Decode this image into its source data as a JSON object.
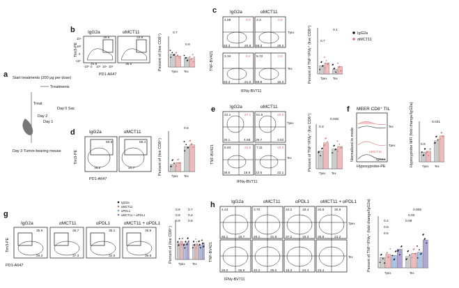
{
  "panels": {
    "a": {
      "label": "a",
      "start": "Start treatments (200 μg per dose)",
      "treatments": "Treatments",
      "treat": "Treat",
      "day2": "Day 2",
      "day1": "Day 1",
      "day0": "Day 0 Sac",
      "day3": "Day 3 Tumor-bearing mouse"
    },
    "b": {
      "label": "b",
      "conditions": [
        "IgG2a",
        "αMCT11"
      ],
      "upper_values": [
        "39.6",
        "33.9"
      ],
      "lower_values": [
        "45.9",
        "36.6"
      ],
      "y_axis": "Tim3-PE",
      "x_axis": "PD1-A647",
      "bar_ylabel": "Percent of (live CD8⁺)",
      "pvalues": [
        "0.7",
        "0.9"
      ],
      "groups": [
        "Tpex",
        "Tex"
      ]
    },
    "c": {
      "label": "c",
      "conditions": [
        "IgG2a",
        "αMCT11"
      ],
      "quadrants": [
        [
          "4.88",
          "0.0",
          "3.3",
          "0.0",
          "63.3",
          "20.8",
          "59.3",
          "29.2"
        ],
        [
          "3.34",
          "9.4",
          "5.72",
          "0.0",
          "63.3",
          "21.0",
          "69.8",
          "16.3"
        ]
      ],
      "row_labels": [
        "Tpex",
        "Tex"
      ],
      "y_axis": "TNF-BV421",
      "x_axis": "IFNγ-BV711",
      "bar_ylabel": "Percent of TNF⁺IFNγ⁺ (live CD8⁺)",
      "pvalues": [
        "0.7",
        "0.1"
      ],
      "groups": [
        "Tpex",
        "Tex"
      ],
      "legend": [
        "IgG2a",
        "αMCT11"
      ]
    },
    "d": {
      "label": "d",
      "conditions": [
        "IgG2a",
        "αMCT11"
      ],
      "upper_values": [
        "59.9",
        "58.4"
      ],
      "lower_values": [
        "19.2",
        "20.7"
      ],
      "y_axis": "Tim3-PE",
      "x_axis": "PD1-A647",
      "bar_ylabel": "Percent of (live CD8⁺)",
      "pvalues": [
        "0.5"
      ],
      "groups": [
        "Tpex",
        "Tex"
      ]
    },
    "e": {
      "label": "e",
      "conditions": [
        "IgG2a",
        "αMCT11"
      ],
      "quadrants": [
        [
          "42.1",
          "27.1",
          "51.6",
          "26.5",
          "26.1",
          "4.68",
          "26.7",
          "3.52"
        ],
        [
          "6.93",
          "20.5",
          "7.11",
          "18.0",
          "36.6",
          "18.8",
          "22.5",
          "22.1"
        ]
      ],
      "row_labels": [
        "Tpex",
        "Tex"
      ],
      "y_axis": "TNF-BV421",
      "x_axis": "IFNγ-BV711",
      "bar_ylabel": "Percent of TNF⁺IFNγ⁺ (live CD8⁺)",
      "pvalues": [
        "0.046",
        "0.3"
      ],
      "groups": [
        "Tpex",
        "Tex"
      ]
    },
    "f": {
      "label": "f",
      "title": "MEER CD8⁺ TIL",
      "hist_labels": [
        "αMCT11",
        "IgG2a"
      ],
      "row_labels": [
        "Tpex",
        "Tex"
      ],
      "y_axis": "Normalized to mode",
      "x_axis": "Hypoxyprobe-PE",
      "bar_ylabel": "Hypoxyprobe MFI (fold change/IgG2a)",
      "pvalues": [
        "0.9",
        "0.031"
      ],
      "groups": [
        "Tpex",
        "Tex"
      ]
    },
    "g": {
      "label": "g",
      "conditions": [
        "IgG2a",
        "αMCT11",
        "αPDL1",
        "αMCT11 + αPDL1"
      ],
      "upper_values": [
        "35.9",
        "36.7",
        "35.1",
        "35.9"
      ],
      "lower_values": [
        "29.2",
        "37.3",
        "32.5",
        "36.8"
      ],
      "legend": [
        "IgG2a",
        "αMCT11",
        "αPDL1",
        "αMCT11 + αPDL1"
      ],
      "y_axis": "Tim3-PE",
      "x_axis": "PD1-A647",
      "bar_ylabel": "Percent of (live CD8⁺)",
      "pvalues": [
        "0.9",
        "0.7",
        "0.9",
        "0.2",
        "0.9",
        "0.8"
      ],
      "groups": [
        "Tpex",
        "Tex"
      ]
    },
    "h": {
      "label": "h",
      "conditions": [
        "IgG2a",
        "αMCT11",
        "αPDL1",
        "αMCT11 + αPDL1"
      ],
      "quadrants_top": [
        [
          "4.43",
          "",
          "65.1",
          "16.7"
        ],
        [
          "3.70",
          "",
          "48.1",
          "31.9"
        ],
        [
          "34.2",
          "18.4",
          "37.2",
          "19.3"
        ],
        [
          "20.6",
          "30.9",
          "35.8",
          "23.2"
        ]
      ],
      "quadrants_bottom": [
        [
          "",
          "",
          "26.0",
          "26.9"
        ],
        [
          "",
          "",
          "40.2",
          "25.0"
        ],
        [
          "",
          "",
          "15.3",
          "24.4"
        ],
        [
          "",
          "",
          "23.4",
          ""
        ]
      ],
      "row_labels": [
        "Tpex",
        "Tex"
      ],
      "y_axis": "TNF-BV421",
      "x_axis": "IFNγ-BV711",
      "bar_ylabel": "Percent of TNF⁺IFNγ⁺ (fold change/IgG2a)",
      "pvalues": [
        "0.005",
        "0.02",
        "0.08",
        "0.2",
        "0.8",
        "0.5"
      ],
      "groups": [
        "Tpex",
        "Tex"
      ]
    }
  },
  "tick_labels": {
    "y_pd": [
      "10⁴",
      "10³",
      "0",
      "-10³"
    ],
    "x_pd": [
      "-10³",
      "0",
      "10³",
      "10⁴",
      "10⁵"
    ],
    "y_bar": [
      "80",
      "60",
      "40",
      "20",
      "0"
    ]
  },
  "colors": {
    "ink": "#111111",
    "accent_red": "#e07070",
    "bar_grey": "#cccccc",
    "bar_pink": "#f2b9b9",
    "bar_blue": "#a9c4e6",
    "bar_purple": "#b0a6d8"
  }
}
